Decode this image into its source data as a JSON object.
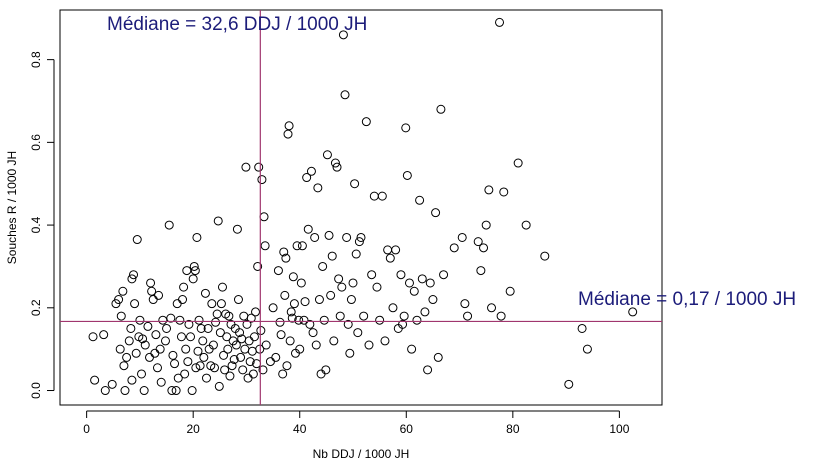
{
  "chart_data": {
    "type": "scatter",
    "title": "",
    "xlabel": "Nb DDJ / 1000 JH",
    "ylabel": "Souches R / 1000 JH",
    "xlim": [
      -5,
      108
    ],
    "ylim": [
      -0.035,
      0.92
    ],
    "x_ticks": [
      0,
      20,
      40,
      60,
      80,
      100
    ],
    "x_tick_labels": [
      "0",
      "20",
      "40",
      "60",
      "80",
      "100"
    ],
    "y_ticks": [
      0.0,
      0.2,
      0.4,
      0.6,
      0.8
    ],
    "y_tick_labels": [
      "0.0",
      "0.2",
      "0.4",
      "0.6",
      "0.8"
    ],
    "grid": false,
    "colors": {
      "points": "#000000",
      "reference_lines": "#a0366e",
      "annotation_text": "#1c1c7a"
    },
    "reference_lines": [
      {
        "orientation": "vertical",
        "value": 32.6,
        "label": "Médiane = 32,6 DDJ / 1000 JH"
      },
      {
        "orientation": "horizontal",
        "value": 0.167,
        "label": "Médiane = 0,17 / 1000 JH"
      }
    ],
    "points": [
      [
        1.2,
        0.13
      ],
      [
        1.5,
        0.025
      ],
      [
        3.2,
        0.135
      ],
      [
        3.5,
        0.0
      ],
      [
        4.8,
        0.015
      ],
      [
        5.5,
        0.21
      ],
      [
        6.0,
        0.22
      ],
      [
        6.3,
        0.1
      ],
      [
        6.5,
        0.18
      ],
      [
        6.8,
        0.24
      ],
      [
        7.0,
        0.06
      ],
      [
        7.2,
        0.0
      ],
      [
        7.5,
        0.08
      ],
      [
        8.0,
        0.12
      ],
      [
        8.3,
        0.15
      ],
      [
        8.5,
        0.27
      ],
      [
        8.8,
        0.28
      ],
      [
        8.5,
        0.025
      ],
      [
        9.0,
        0.21
      ],
      [
        9.3,
        0.09
      ],
      [
        9.5,
        0.365
      ],
      [
        9.8,
        0.13
      ],
      [
        10.0,
        0.17
      ],
      [
        10.3,
        0.04
      ],
      [
        10.5,
        0.125
      ],
      [
        10.8,
        0.0
      ],
      [
        11.0,
        0.11
      ],
      [
        11.5,
        0.155
      ],
      [
        11.8,
        0.08
      ],
      [
        12.0,
        0.26
      ],
      [
        12.2,
        0.24
      ],
      [
        12.5,
        0.22
      ],
      [
        12.8,
        0.09
      ],
      [
        13.0,
        0.135
      ],
      [
        13.3,
        0.055
      ],
      [
        13.5,
        0.23
      ],
      [
        13.8,
        0.1
      ],
      [
        14.0,
        0.02
      ],
      [
        14.3,
        0.17
      ],
      [
        14.8,
        0.12
      ],
      [
        15.0,
        0.15
      ],
      [
        15.5,
        0.4
      ],
      [
        15.8,
        0.175
      ],
      [
        16.0,
        0.0
      ],
      [
        16.2,
        0.085
      ],
      [
        16.5,
        0.065
      ],
      [
        16.8,
        0.0
      ],
      [
        17.0,
        0.21
      ],
      [
        17.2,
        0.03
      ],
      [
        17.5,
        0.17
      ],
      [
        17.8,
        0.13
      ],
      [
        18.0,
        0.22
      ],
      [
        18.2,
        0.25
      ],
      [
        18.4,
        0.04
      ],
      [
        18.6,
        0.1
      ],
      [
        18.8,
        0.29
      ],
      [
        19.0,
        0.07
      ],
      [
        19.2,
        0.16
      ],
      [
        19.5,
        0.13
      ],
      [
        19.8,
        0.0
      ],
      [
        20.0,
        0.27
      ],
      [
        20.2,
        0.3
      ],
      [
        20.4,
        0.29
      ],
      [
        20.5,
        0.055
      ],
      [
        20.7,
        0.37
      ],
      [
        20.9,
        0.095
      ],
      [
        21.1,
        0.17
      ],
      [
        21.3,
        0.06
      ],
      [
        21.5,
        0.15
      ],
      [
        21.8,
        0.12
      ],
      [
        22.0,
        0.08
      ],
      [
        22.3,
        0.235
      ],
      [
        22.5,
        0.03
      ],
      [
        22.8,
        0.15
      ],
      [
        23.0,
        0.1
      ],
      [
        23.3,
        0.06
      ],
      [
        23.5,
        0.21
      ],
      [
        23.8,
        0.11
      ],
      [
        24.0,
        0.055
      ],
      [
        24.2,
        0.165
      ],
      [
        24.5,
        0.185
      ],
      [
        24.7,
        0.41
      ],
      [
        24.9,
        0.01
      ],
      [
        25.1,
        0.14
      ],
      [
        25.3,
        0.21
      ],
      [
        25.5,
        0.25
      ],
      [
        25.7,
        0.085
      ],
      [
        25.9,
        0.05
      ],
      [
        26.1,
        0.185
      ],
      [
        26.3,
        0.13
      ],
      [
        26.5,
        0.1
      ],
      [
        26.7,
        0.18
      ],
      [
        26.9,
        0.035
      ],
      [
        27.1,
        0.16
      ],
      [
        27.3,
        0.06
      ],
      [
        27.5,
        0.12
      ],
      [
        27.7,
        0.075
      ],
      [
        27.9,
        0.15
      ],
      [
        28.1,
        0.11
      ],
      [
        28.3,
        0.39
      ],
      [
        28.5,
        0.22
      ],
      [
        28.7,
        0.14
      ],
      [
        28.9,
        0.08
      ],
      [
        29.1,
        0.125
      ],
      [
        29.3,
        0.05
      ],
      [
        29.5,
        0.18
      ],
      [
        29.7,
        0.1
      ],
      [
        29.9,
        0.54
      ],
      [
        30.1,
        0.16
      ],
      [
        30.3,
        0.03
      ],
      [
        30.5,
        0.12
      ],
      [
        30.7,
        0.07
      ],
      [
        30.9,
        0.175
      ],
      [
        31.1,
        0.095
      ],
      [
        31.3,
        0.04
      ],
      [
        31.5,
        0.13
      ],
      [
        31.7,
        0.19
      ],
      [
        31.9,
        0.065
      ],
      [
        32.1,
        0.3
      ],
      [
        32.3,
        0.54
      ],
      [
        32.5,
        0.1
      ],
      [
        32.7,
        0.145
      ],
      [
        32.9,
        0.51
      ],
      [
        33.1,
        0.05
      ],
      [
        33.3,
        0.42
      ],
      [
        33.5,
        0.35
      ],
      [
        33.7,
        0.11
      ],
      [
        34.5,
        0.07
      ],
      [
        35.0,
        0.2
      ],
      [
        35.5,
        0.08
      ],
      [
        36.0,
        0.29
      ],
      [
        36.3,
        0.165
      ],
      [
        36.5,
        0.135
      ],
      [
        36.8,
        0.04
      ],
      [
        37.0,
        0.335
      ],
      [
        37.2,
        0.23
      ],
      [
        37.4,
        0.32
      ],
      [
        37.6,
        0.06
      ],
      [
        37.8,
        0.62
      ],
      [
        38.0,
        0.64
      ],
      [
        38.2,
        0.12
      ],
      [
        38.4,
        0.19
      ],
      [
        38.6,
        0.175
      ],
      [
        38.8,
        0.275
      ],
      [
        39.0,
        0.21
      ],
      [
        39.2,
        0.09
      ],
      [
        39.5,
        0.35
      ],
      [
        39.8,
        0.17
      ],
      [
        40.0,
        0.1
      ],
      [
        40.3,
        0.26
      ],
      [
        40.5,
        0.35
      ],
      [
        40.8,
        0.17
      ],
      [
        41.0,
        0.215
      ],
      [
        41.3,
        0.515
      ],
      [
        41.6,
        0.39
      ],
      [
        41.9,
        0.16
      ],
      [
        42.2,
        0.53
      ],
      [
        42.5,
        0.14
      ],
      [
        42.8,
        0.37
      ],
      [
        43.1,
        0.11
      ],
      [
        43.4,
        0.49
      ],
      [
        43.7,
        0.22
      ],
      [
        44.0,
        0.04
      ],
      [
        44.3,
        0.3
      ],
      [
        44.6,
        0.17
      ],
      [
        44.9,
        0.05
      ],
      [
        45.2,
        0.57
      ],
      [
        45.5,
        0.375
      ],
      [
        45.8,
        0.23
      ],
      [
        46.1,
        0.325
      ],
      [
        46.4,
        0.12
      ],
      [
        46.7,
        0.55
      ],
      [
        47.0,
        0.54
      ],
      [
        47.3,
        0.27
      ],
      [
        47.6,
        0.18
      ],
      [
        47.9,
        0.25
      ],
      [
        48.2,
        0.86
      ],
      [
        48.5,
        0.715
      ],
      [
        48.8,
        0.37
      ],
      [
        49.1,
        0.16
      ],
      [
        49.4,
        0.09
      ],
      [
        49.7,
        0.22
      ],
      [
        50.0,
        0.26
      ],
      [
        50.3,
        0.5
      ],
      [
        50.6,
        0.33
      ],
      [
        50.9,
        0.14
      ],
      [
        51.2,
        0.36
      ],
      [
        51.5,
        0.37
      ],
      [
        52.0,
        0.18
      ],
      [
        52.5,
        0.65
      ],
      [
        53.0,
        0.11
      ],
      [
        53.5,
        0.28
      ],
      [
        54.0,
        0.47
      ],
      [
        54.5,
        0.25
      ],
      [
        55.0,
        0.17
      ],
      [
        55.5,
        0.47
      ],
      [
        56.0,
        0.12
      ],
      [
        56.5,
        0.34
      ],
      [
        57.0,
        0.32
      ],
      [
        57.5,
        0.2
      ],
      [
        58.0,
        0.34
      ],
      [
        58.5,
        0.15
      ],
      [
        59.0,
        0.28
      ],
      [
        59.3,
        0.16
      ],
      [
        59.6,
        0.18
      ],
      [
        59.9,
        0.635
      ],
      [
        60.2,
        0.52
      ],
      [
        60.6,
        0.26
      ],
      [
        61.0,
        0.1
      ],
      [
        61.5,
        0.24
      ],
      [
        62.0,
        0.17
      ],
      [
        62.5,
        0.46
      ],
      [
        63.0,
        0.27
      ],
      [
        63.5,
        0.19
      ],
      [
        64.0,
        0.05
      ],
      [
        64.5,
        0.26
      ],
      [
        65.0,
        0.22
      ],
      [
        65.5,
        0.43
      ],
      [
        66.0,
        0.08
      ],
      [
        66.5,
        0.68
      ],
      [
        67.0,
        0.28
      ],
      [
        69.0,
        0.345
      ],
      [
        70.5,
        0.37
      ],
      [
        71.0,
        0.21
      ],
      [
        71.5,
        0.18
      ],
      [
        73.5,
        0.36
      ],
      [
        74.0,
        0.29
      ],
      [
        74.5,
        0.345
      ],
      [
        75.0,
        0.4
      ],
      [
        75.5,
        0.485
      ],
      [
        76.0,
        0.2
      ],
      [
        77.5,
        0.89
      ],
      [
        77.8,
        0.18
      ],
      [
        78.3,
        0.48
      ],
      [
        79.5,
        0.24
      ],
      [
        81.0,
        0.55
      ],
      [
        82.5,
        0.4
      ],
      [
        86.0,
        0.325
      ],
      [
        90.5,
        0.015
      ],
      [
        93.0,
        0.15
      ],
      [
        94.0,
        0.1
      ],
      [
        102.5,
        0.19
      ]
    ]
  }
}
